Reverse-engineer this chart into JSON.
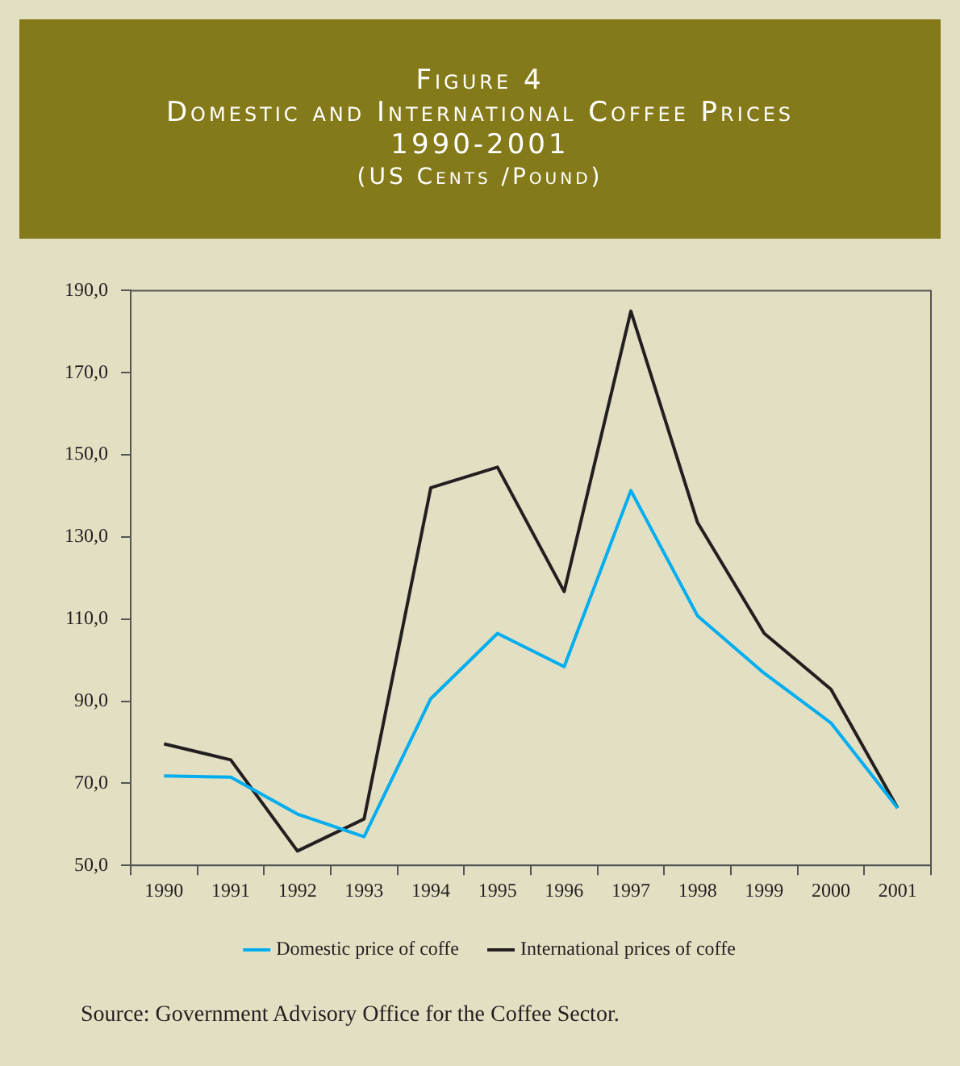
{
  "chart_data": {
    "type": "line",
    "title": "Figure 4\nDomestic and International Coffee Prices\n1990-2001",
    "subtitle": "(US Cents /Pound)",
    "categories": [
      "1990",
      "1991",
      "1992",
      "1993",
      "1994",
      "1995",
      "1996",
      "1997",
      "1998",
      "1999",
      "2000",
      "2001"
    ],
    "series": [
      {
        "name": "Domestic price of coffe",
        "color": "#00aeef",
        "values": [
          71.8,
          71.5,
          62.5,
          57,
          90.6,
          106.5,
          98.4,
          141.3,
          110.8,
          96.8,
          84.7,
          64
        ]
      },
      {
        "name": "International prices of coffe",
        "color": "#231f20",
        "values": [
          79.6,
          75.7,
          53.5,
          61.3,
          142,
          147,
          116.7,
          185,
          133.5,
          106.5,
          92.9,
          64
        ]
      }
    ],
    "ylim": [
      50,
      190
    ],
    "yticks": [
      {
        "value": 50,
        "label": "50,0"
      },
      {
        "value": 70,
        "label": "70,0"
      },
      {
        "value": 90,
        "label": "90,0"
      },
      {
        "value": 110,
        "label": "110,0"
      },
      {
        "value": 130,
        "label": "130,0"
      },
      {
        "value": 150,
        "label": "150,0"
      },
      {
        "value": 170,
        "label": "170,0"
      },
      {
        "value": 190,
        "label": "190,0"
      }
    ],
    "grid": false,
    "legend": "bottom",
    "marker": "none",
    "line_style": "solid",
    "annotations": [
      "Source: Government Advisory Office for the Coffee Sector."
    ]
  }
}
